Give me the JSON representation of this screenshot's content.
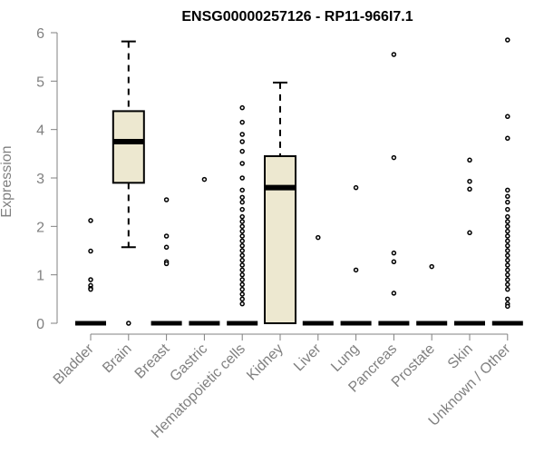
{
  "chart_data": {
    "type": "boxplot",
    "title": "ENSG00000257126 - RP11-966I7.1",
    "xlabel": "",
    "ylabel": "Expression",
    "ylim": [
      0,
      6
    ],
    "yticks": [
      0,
      1,
      2,
      3,
      4,
      5,
      6
    ],
    "categories": [
      "Bladder",
      "Brain",
      "Breast",
      "Gastric",
      "Hematopoietic cells",
      "Kidney",
      "Liver",
      "Lung",
      "Pancreas",
      "Prostate",
      "Skin",
      "Unknown / Other"
    ],
    "boxes": [
      {
        "name": "Bladder",
        "min": 0,
        "q1": 0,
        "median": 0,
        "q3": 0,
        "max": 0,
        "outliers": [
          2.12,
          1.49,
          0.9,
          0.78,
          0.72,
          0.7
        ],
        "zero_cluster": true
      },
      {
        "name": "Brain",
        "min": 1.57,
        "q1": 2.9,
        "median": 3.75,
        "q3": 4.38,
        "max": 5.82,
        "outliers": [
          0
        ],
        "zero_cluster": false
      },
      {
        "name": "Breast",
        "min": 0,
        "q1": 0,
        "median": 0,
        "q3": 0,
        "max": 0,
        "outliers": [
          2.55,
          1.8,
          1.57,
          1.27,
          1.23
        ],
        "zero_cluster": true
      },
      {
        "name": "Gastric",
        "min": 0,
        "q1": 0,
        "median": 0,
        "q3": 0,
        "max": 0,
        "outliers": [
          2.97
        ],
        "zero_cluster": true
      },
      {
        "name": "Hematopoietic cells",
        "min": 0,
        "q1": 0,
        "median": 0,
        "q3": 0,
        "max": 0,
        "outliers": [
          4.45,
          4.15,
          3.9,
          3.75,
          3.55,
          3.3,
          3.0,
          2.75,
          2.6,
          2.5,
          2.35,
          2.2,
          2.1,
          2.0,
          1.9,
          1.8,
          1.7,
          1.6,
          1.5,
          1.4,
          1.3,
          1.2,
          1.1,
          1.0,
          0.9,
          0.8,
          0.7,
          0.6,
          0.5,
          0.4
        ],
        "zero_cluster": true
      },
      {
        "name": "Kidney",
        "min": 0,
        "q1": 0,
        "median": 2.8,
        "q3": 3.45,
        "max": 4.97,
        "outliers": [],
        "zero_cluster": false
      },
      {
        "name": "Liver",
        "min": 0,
        "q1": 0,
        "median": 0,
        "q3": 0,
        "max": 0,
        "outliers": [
          1.77
        ],
        "zero_cluster": true
      },
      {
        "name": "Lung",
        "min": 0,
        "q1": 0,
        "median": 0,
        "q3": 0,
        "max": 0,
        "outliers": [
          2.8,
          1.1
        ],
        "zero_cluster": true
      },
      {
        "name": "Pancreas",
        "min": 0,
        "q1": 0,
        "median": 0,
        "q3": 0,
        "max": 0,
        "outliers": [
          5.55,
          3.42,
          1.45,
          1.27,
          0.62
        ],
        "zero_cluster": true
      },
      {
        "name": "Prostate",
        "min": 0,
        "q1": 0,
        "median": 0,
        "q3": 0,
        "max": 0,
        "outliers": [
          1.17
        ],
        "zero_cluster": true
      },
      {
        "name": "Skin",
        "min": 0,
        "q1": 0,
        "median": 0,
        "q3": 0,
        "max": 0,
        "outliers": [
          3.37,
          2.93,
          2.77,
          1.87
        ],
        "zero_cluster": true
      },
      {
        "name": "Unknown / Other",
        "min": 0,
        "q1": 0,
        "median": 0,
        "q3": 0,
        "max": 0,
        "outliers": [
          5.85,
          4.27,
          3.82,
          2.75,
          2.62,
          2.5,
          2.35,
          2.2,
          2.1,
          2.0,
          1.9,
          1.8,
          1.7,
          1.6,
          1.5,
          1.4,
          1.3,
          1.2,
          1.1,
          1.0,
          0.9,
          0.8,
          0.7,
          0.5,
          0.4,
          0.35
        ],
        "zero_cluster": true
      }
    ],
    "grid": false,
    "legend": "none"
  },
  "colors": {
    "box_fill": "#ede8d0",
    "box_stroke": "#000000",
    "axis": "#808080",
    "text_muted": "#808080",
    "title": "#000000"
  }
}
